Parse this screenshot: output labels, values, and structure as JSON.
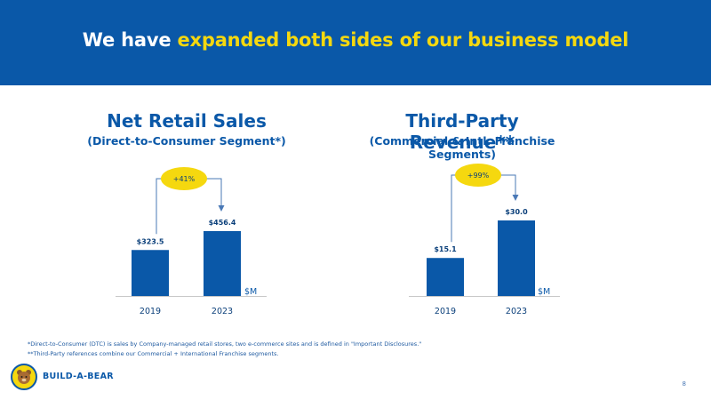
{
  "header": {
    "title_prefix": "We have ",
    "title_highlight": "expanded both sides of our business model"
  },
  "colors": {
    "brand_blue": "#0a58a8",
    "highlight_yellow": "#f5d80f",
    "bar_blue": "#0a58a8"
  },
  "chart_data": [
    {
      "type": "bar",
      "title": "Net Retail Sales",
      "subtitle": "(Direct-to-Consumer Segment*)",
      "categories": [
        "2019",
        "2023"
      ],
      "values": [
        323.5,
        456.4
      ],
      "value_labels": [
        "$323.5",
        "$456.4"
      ],
      "unit_label": "$M",
      "growth_label": "+41%",
      "ylim": [
        0,
        456.4
      ]
    },
    {
      "type": "bar",
      "title": "Third-Party Revenue**",
      "subtitle": "(Commercial & Intl. Franchise Segments)",
      "categories": [
        "2019",
        "2023"
      ],
      "values": [
        15.1,
        30.0
      ],
      "value_labels": [
        "$15.1",
        "$30.0"
      ],
      "unit_label": "$M",
      "growth_label": "+99%",
      "ylim": [
        0,
        30.0
      ]
    }
  ],
  "footnotes": [
    "*Direct-to-Consumer (DTC) is sales by Company-managed retail stores, two e-commerce sites and is defined in \"Important Disclosures.\"",
    "**Third-Party references combine our Commercial + International Franchise segments."
  ],
  "logo": {
    "text": "BUILD-A-BEAR",
    "icon": "bear-logo-icon"
  },
  "page_number": "8"
}
